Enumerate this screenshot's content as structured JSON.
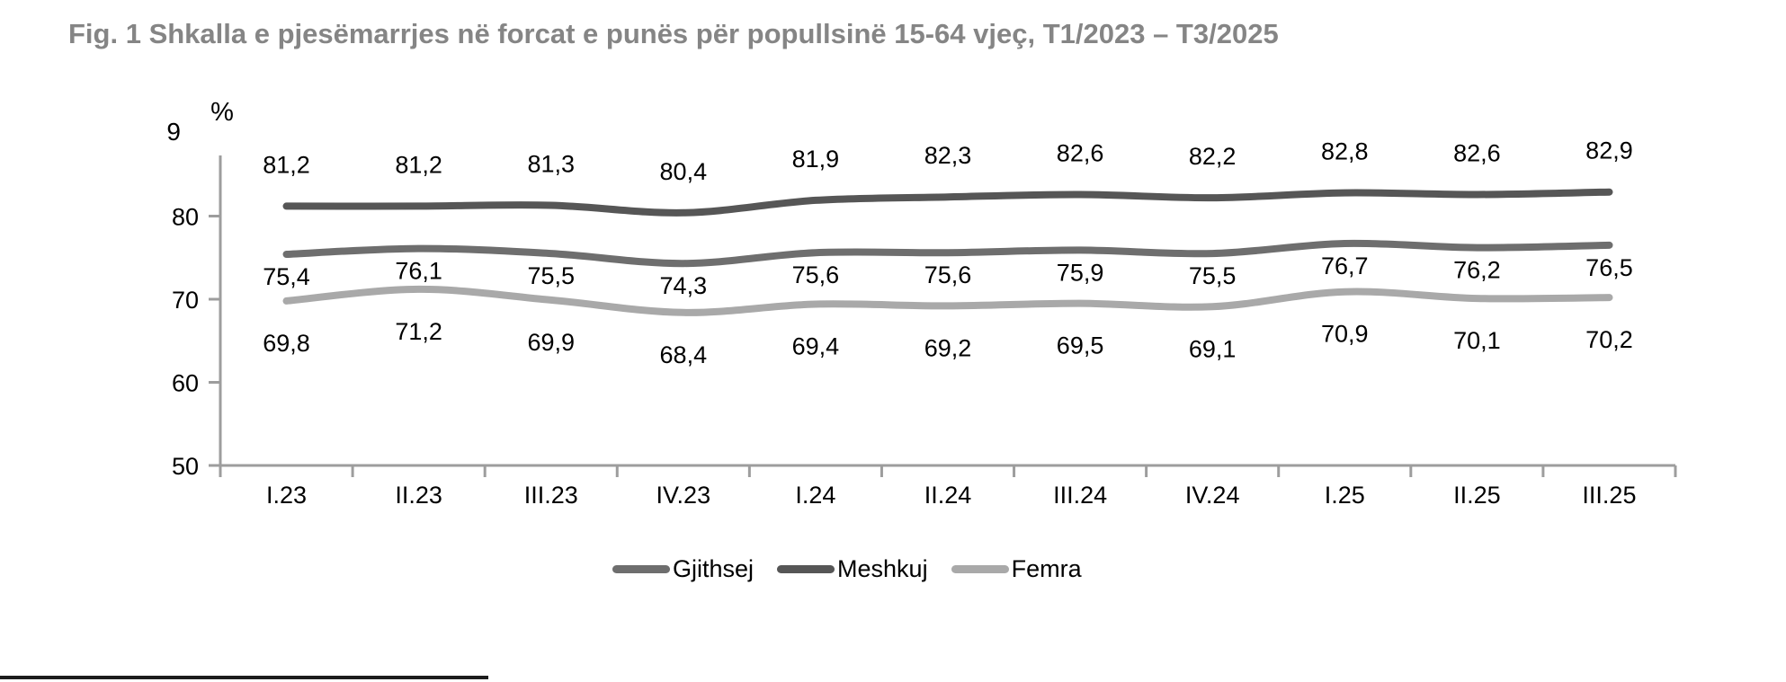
{
  "title": "Fig. 1 Shkalla e pjesëmarrjes në forcat e punës për popullsinë 15-64 vjeç, T1/2023 – T3/2025",
  "chart_data": {
    "type": "line",
    "title": "Fig. 1 Shkalla e pjesëmarrjes në forcat e punës për popullsinë 15-64 vjeç, T1/2023 – T3/2025",
    "categories": [
      "I.23",
      "II.23",
      "III.23",
      "IV.23",
      "I.24",
      "II.24",
      "III.24",
      "IV.24",
      "I.25",
      "II.25",
      "III.25"
    ],
    "series": [
      {
        "name": "Gjithsej",
        "color": "#6e6e6e",
        "label_side": "below",
        "label_dy": 34,
        "values": [
          75.4,
          76.1,
          75.5,
          74.3,
          75.6,
          75.6,
          75.9,
          75.5,
          76.7,
          76.2,
          76.5
        ]
      },
      {
        "name": "Meshkuj",
        "color": "#565656",
        "label_side": "above",
        "label_dy": -37,
        "values": [
          81.2,
          81.2,
          81.3,
          80.4,
          81.9,
          82.3,
          82.6,
          82.2,
          82.8,
          82.6,
          82.9
        ]
      },
      {
        "name": "Femra",
        "color": "#a9a9a9",
        "label_side": "below",
        "label_dy": 56,
        "values": [
          69.8,
          71.2,
          69.9,
          68.4,
          69.4,
          69.2,
          69.5,
          69.1,
          70.9,
          70.1,
          70.2
        ]
      }
    ],
    "y_axis": {
      "unit_label": "%",
      "tick_values": [
        80,
        70,
        60,
        50
      ],
      "clipped_top_label": "9",
      "min": 50,
      "max": 90
    },
    "legend": {
      "position": "bottom",
      "entries": [
        "Gjithsej",
        "Meshkuj",
        "Femra"
      ]
    },
    "grid": false,
    "decimal_separator": ","
  },
  "colors": {
    "axis": "#9d9d9d",
    "title": "#858585",
    "data_label": "#000000",
    "footer_rule": "#1c1c1c"
  }
}
